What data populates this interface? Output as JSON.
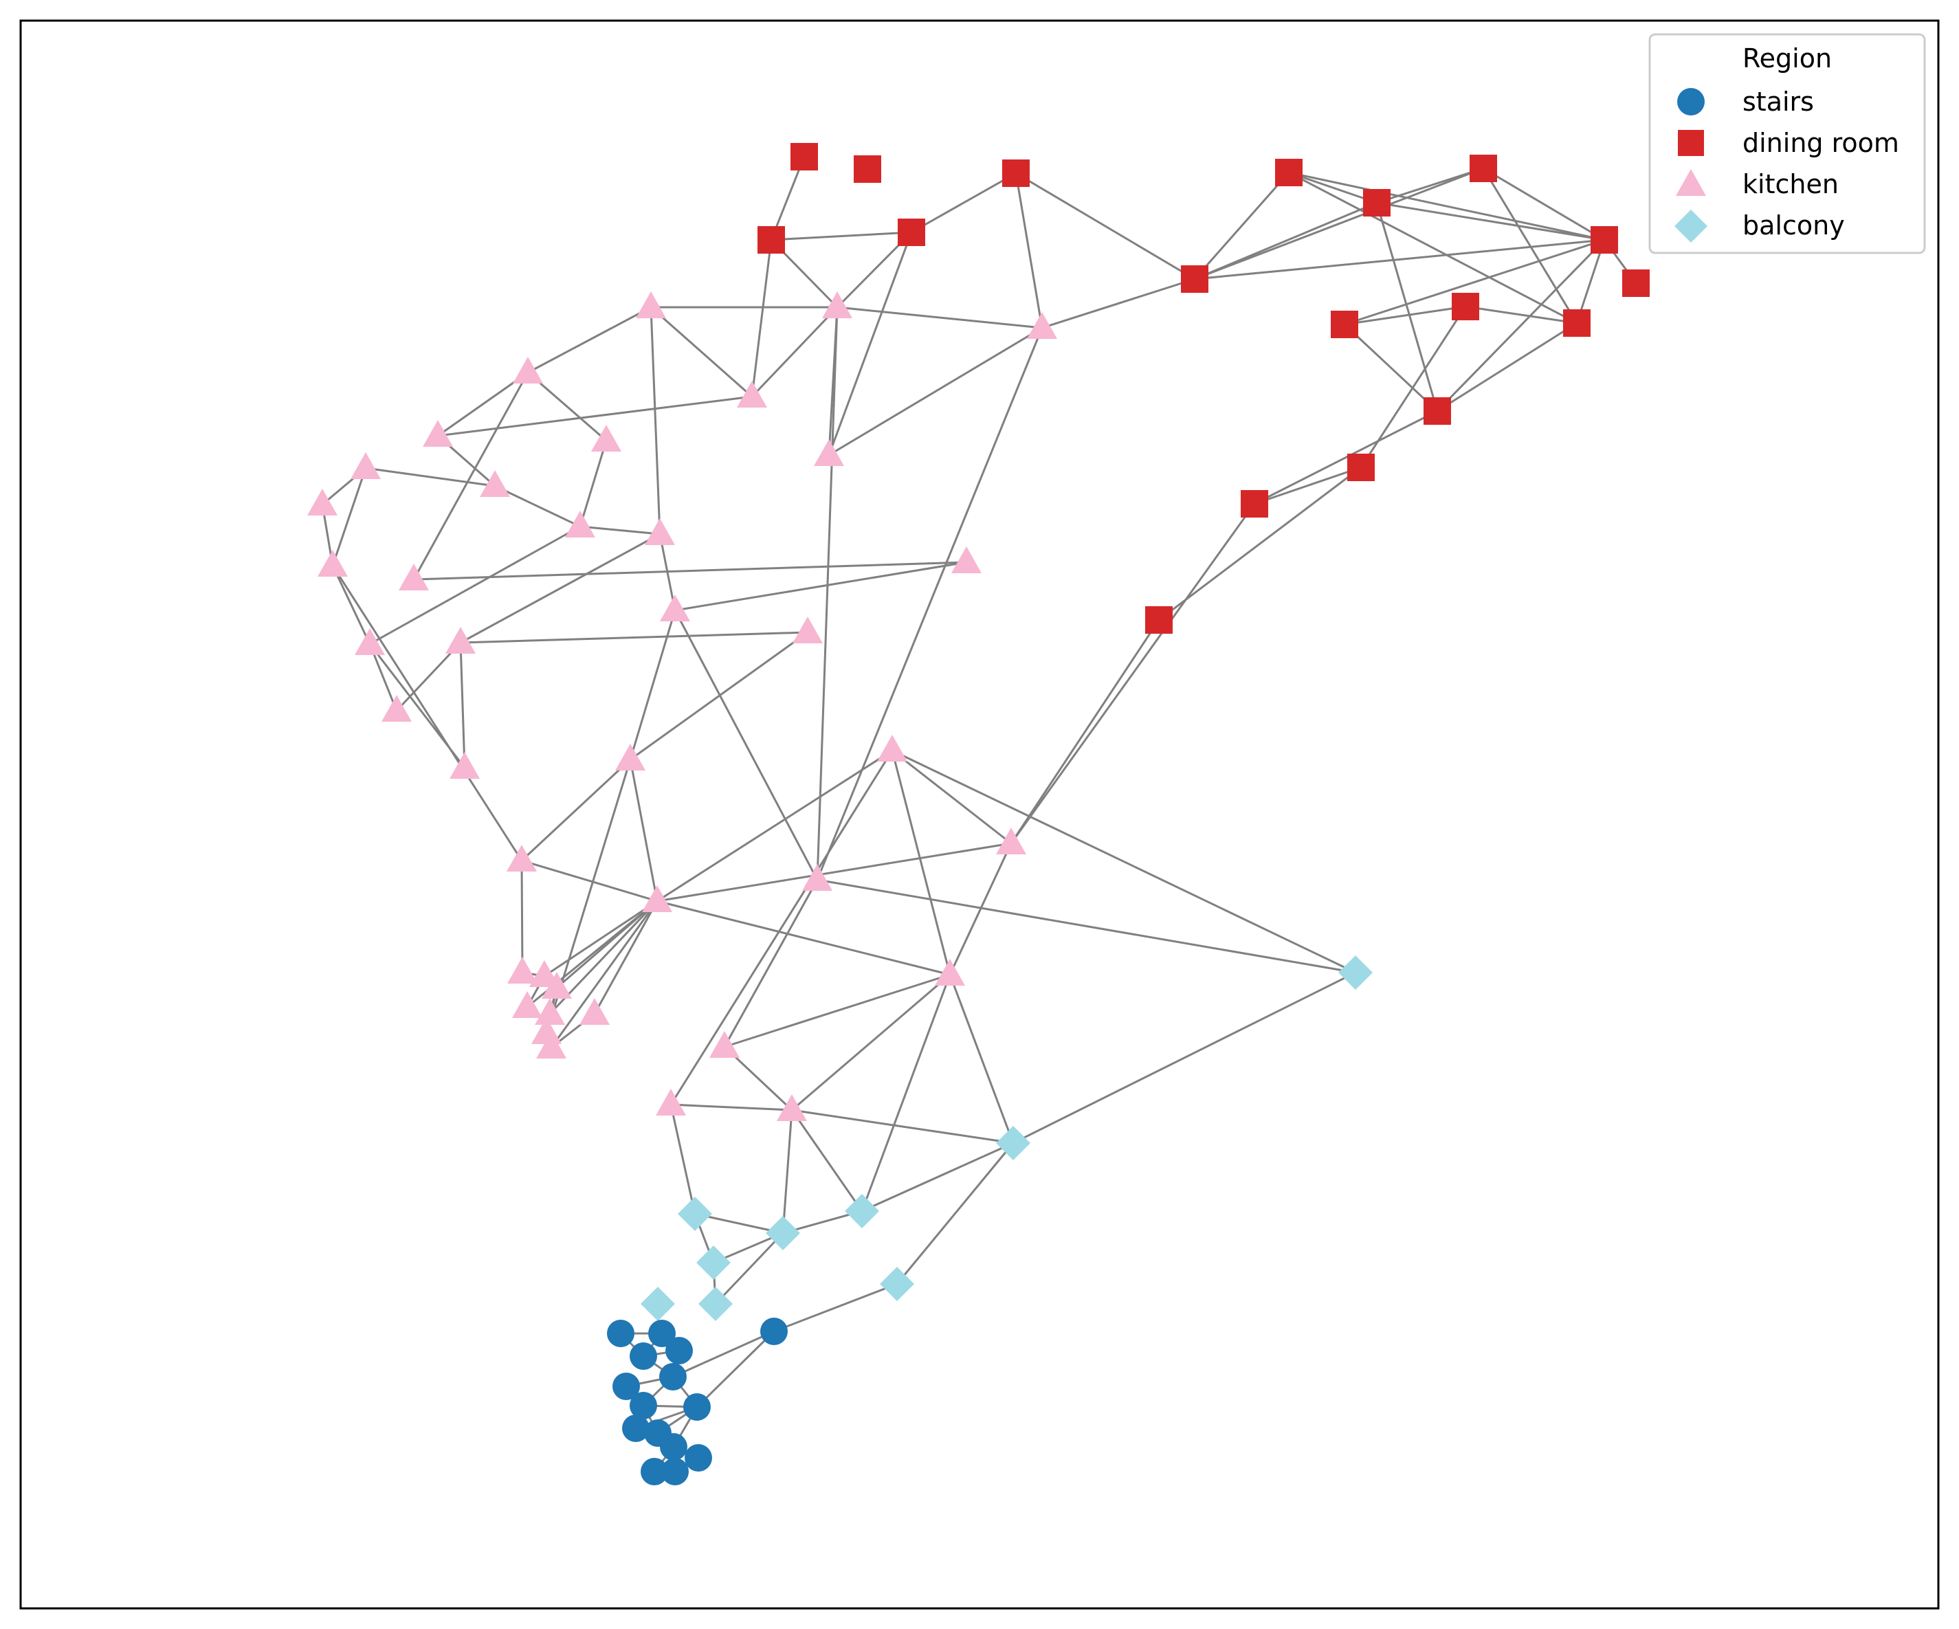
{
  "legend": {
    "title": "Region",
    "items": [
      {
        "label": "stairs",
        "shape": "circle",
        "color": "#1f77b4"
      },
      {
        "label": "dining room",
        "shape": "square",
        "color": "#d62728"
      },
      {
        "label": "kitchen",
        "shape": "triangle",
        "color": "#f7b6d2"
      },
      {
        "label": "balcony",
        "shape": "diamond",
        "color": "#9edae5"
      }
    ]
  },
  "colors": {
    "edge": "#808080",
    "frame": "#000000"
  }
}
